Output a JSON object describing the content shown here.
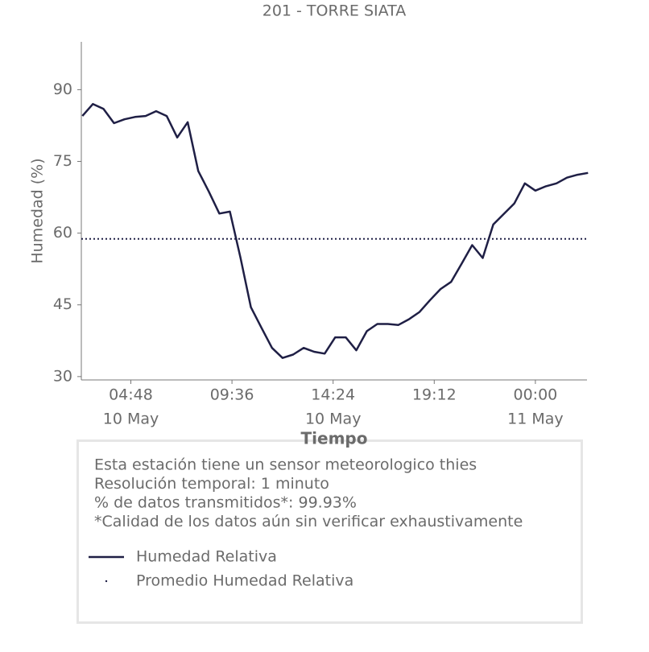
{
  "chart_data": {
    "type": "line",
    "title": "201 - TORRE SIATA",
    "xlabel": "Tiempo",
    "ylabel": "Humedad (%)",
    "xlim": [
      "10 May 02:27",
      "11 May 02:27"
    ],
    "xticks": [
      {
        "value": "10 May 04:48",
        "label": "04:48",
        "date": "10 May"
      },
      {
        "value": "10 May 09:36",
        "label": "09:36"
      },
      {
        "value": "10 May 14:24",
        "label": "14:24",
        "date": "10 May"
      },
      {
        "value": "10 May 19:12",
        "label": "19:12"
      },
      {
        "value": "11 May 00:00",
        "label": "00:00",
        "date": "11 May"
      }
    ],
    "ylim": [
      29.3,
      100
    ],
    "yticks": [
      30,
      45,
      60,
      75,
      90
    ],
    "x": [
      "10 May 02:30",
      "10 May 03:00",
      "10 May 03:30",
      "10 May 04:00",
      "10 May 04:30",
      "10 May 05:00",
      "10 May 05:30",
      "10 May 06:00",
      "10 May 06:30",
      "10 May 07:00",
      "10 May 07:30",
      "10 May 08:00",
      "10 May 08:30",
      "10 May 09:00",
      "10 May 09:30",
      "10 May 10:00",
      "10 May 10:30",
      "10 May 11:00",
      "10 May 11:30",
      "10 May 12:00",
      "10 May 12:30",
      "10 May 13:00",
      "10 May 13:30",
      "10 May 14:00",
      "10 May 14:30",
      "10 May 15:00",
      "10 May 15:30",
      "10 May 16:00",
      "10 May 16:30",
      "10 May 17:00",
      "10 May 17:30",
      "10 May 18:00",
      "10 May 18:30",
      "10 May 19:00",
      "10 May 19:30",
      "10 May 20:00",
      "10 May 20:30",
      "10 May 21:00",
      "10 May 21:30",
      "10 May 22:00",
      "10 May 22:30",
      "10 May 23:00",
      "10 May 23:30",
      "11 May 00:00",
      "11 May 00:30",
      "11 May 01:00",
      "11 May 01:30",
      "11 May 02:00",
      "11 May 02:30"
    ],
    "series": [
      {
        "name": "Humedad Relativa",
        "color": "#1f1f45",
        "values": [
          84.5,
          87,
          86,
          83,
          83.8,
          84.3,
          84.5,
          85.5,
          84.5,
          80,
          83.2,
          73,
          68.7,
          64.1,
          64.5,
          54.9,
          44.5,
          40.2,
          36,
          33.9,
          34.6,
          36,
          35.2,
          34.8,
          38.2,
          38.2,
          35.5,
          39.5,
          41,
          41,
          40.8,
          42,
          43.5,
          46,
          48.3,
          49.8,
          53.6,
          57.5,
          54.8,
          61.8,
          64,
          66.2,
          70.4,
          68.9,
          69.8,
          70.4,
          71.6,
          72.2,
          72.6
        ]
      }
    ],
    "average": {
      "name": "Promedio Humedad Relativa",
      "value": 58.8,
      "color": "#1f1f45"
    },
    "notes": [
      "Esta estación tiene un sensor meteorologico thies",
      "Resolución temporal: 1 minuto",
      "% de datos transmitidos*: 99.93%",
      "*Calidad de los datos aún sin verificar exhaustivamente"
    ]
  }
}
